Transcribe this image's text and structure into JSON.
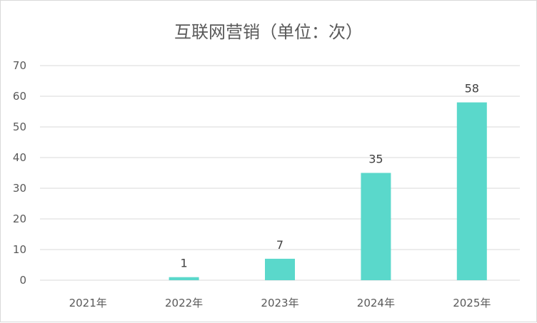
{
  "chart_data": {
    "type": "bar",
    "title": "互联网营销（单位：次）",
    "categories": [
      "2021年",
      "2022年",
      "2023年",
      "2024年",
      "2025年"
    ],
    "values": [
      0,
      1,
      7,
      35,
      58
    ],
    "data_labels": [
      "",
      "1",
      "7",
      "35",
      "58"
    ],
    "ylim": [
      0,
      70
    ],
    "yticks": [
      0,
      10,
      20,
      30,
      40,
      50,
      60,
      70
    ],
    "grid": true,
    "legend": "none",
    "bar_color": "#5ad8cb",
    "grid_color": "#d9d9d9"
  }
}
